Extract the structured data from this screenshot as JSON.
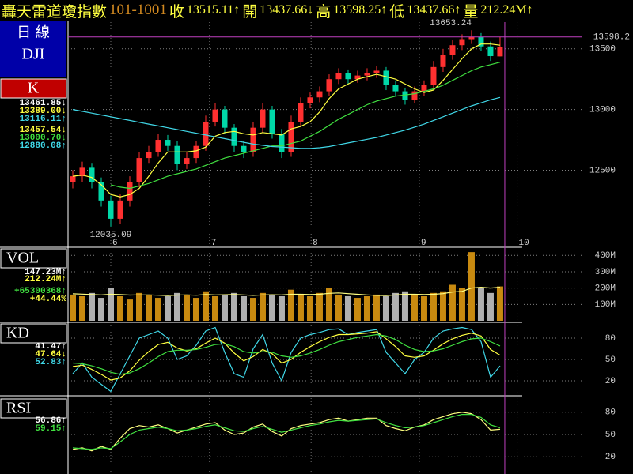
{
  "header": {
    "title": "轟天雷道瓊指數",
    "date": "101-1001",
    "items": [
      {
        "label": "收",
        "value": "13515.11↑"
      },
      {
        "label": "開",
        "value": "13437.66↓"
      },
      {
        "label": "高",
        "value": "13598.25↑"
      },
      {
        "label": "低",
        "value": "13437.66↑"
      },
      {
        "label": "量",
        "value": "212.24M↑"
      }
    ]
  },
  "sidebar": {
    "period": "日 線",
    "symbol": "DJI"
  },
  "chart_data": [
    {
      "type": "candlestick",
      "title": "K",
      "up_color": "#ff3030",
      "down_color": "#00d8a8",
      "xlim": [
        -0.5,
        46.67
      ],
      "xticks": [
        {
          "value": 4,
          "label": "6"
        },
        {
          "value": 14.4,
          "label": "7"
        },
        {
          "value": 25.1,
          "label": "8"
        },
        {
          "value": 36.5,
          "label": "9"
        },
        {
          "value": 46.8,
          "label": "10"
        }
      ],
      "ylim": [
        11865,
        13720
      ],
      "yticks": [
        12500,
        13000,
        13500
      ],
      "open": [
        12400,
        12450,
        12520,
        12400,
        12250,
        12100,
        12250,
        12400,
        12600,
        12650,
        12750,
        12700,
        12550,
        12600,
        12700,
        12900,
        13000,
        12850,
        12700,
        12650,
        12850,
        13000,
        12800,
        12650,
        12900,
        13050,
        13100,
        13150,
        13250,
        13300,
        13250,
        13280,
        13300,
        13320,
        13200,
        13150,
        13080,
        13150,
        13200,
        13350,
        13450,
        13530,
        13580,
        13600,
        13520,
        13437.66
      ],
      "high": [
        12500,
        12570,
        12560,
        12440,
        12290,
        12300,
        12450,
        12650,
        12700,
        12800,
        12790,
        12740,
        12650,
        12740,
        12950,
        13050,
        13030,
        12880,
        12740,
        12900,
        13050,
        13030,
        12840,
        12950,
        13100,
        13140,
        13190,
        13290,
        13340,
        13330,
        13320,
        13340,
        13360,
        13350,
        13240,
        13180,
        13190,
        13240,
        13400,
        13500,
        13570,
        13620,
        13653.24,
        13630,
        13560,
        13598.25
      ],
      "low": [
        12350,
        12400,
        12350,
        12200,
        12035.09,
        12060,
        12200,
        12360,
        12560,
        12610,
        12660,
        12500,
        12510,
        12560,
        12660,
        12860,
        12800,
        12650,
        12600,
        12610,
        12810,
        12760,
        12600,
        12610,
        12860,
        13010,
        13060,
        13110,
        13210,
        13210,
        13220,
        13240,
        13260,
        13160,
        13110,
        13040,
        13050,
        13110,
        13160,
        13310,
        13410,
        13490,
        13540,
        13480,
        13400,
        13437.66
      ],
      "close": [
        12450,
        12520,
        12400,
        12250,
        12100,
        12250,
        12400,
        12600,
        12650,
        12750,
        12700,
        12550,
        12600,
        12700,
        12900,
        13000,
        12850,
        12700,
        12650,
        12850,
        13000,
        12800,
        12650,
        12900,
        13050,
        13100,
        13150,
        13250,
        13300,
        13250,
        13280,
        13300,
        13320,
        13200,
        13150,
        13080,
        13150,
        13200,
        13350,
        13450,
        13530,
        13580,
        13600,
        13520,
        13440,
        13515.11
      ],
      "ma_lines": [
        {
          "color": "#ffff40",
          "values": [
            12450,
            12460,
            12440,
            12380,
            12300,
            12280,
            12300,
            12350,
            12450,
            12560,
            12650,
            12650,
            12650,
            12660,
            12690,
            12780,
            12810,
            12820,
            12800,
            12790,
            12810,
            12800,
            12790,
            12840,
            12860,
            12900,
            12980,
            13090,
            13170,
            13210,
            13250,
            13270,
            13290,
            13270,
            13250,
            13210,
            13170,
            13140,
            13160,
            13240,
            13330,
            13420,
            13500,
            13540,
            13540,
            13530
          ]
        },
        {
          "color": "#40e040",
          "values": [
            null,
            null,
            null,
            null,
            12380,
            12360,
            12350,
            12370,
            12390,
            12420,
            12450,
            12470,
            12490,
            12510,
            12540,
            12570,
            12600,
            12620,
            12640,
            12660,
            12680,
            12700,
            12700,
            12720,
            12740,
            12780,
            12820,
            12870,
            12920,
            12960,
            13000,
            13040,
            13070,
            13090,
            13110,
            13120,
            13130,
            13150,
            13170,
            13200,
            13240,
            13280,
            13320,
            13350,
            13370,
            13390
          ]
        },
        {
          "color": "#40d8e8",
          "values": [
            13000,
            12985,
            12970,
            12955,
            12940,
            12925,
            12910,
            12895,
            12880,
            12865,
            12850,
            12835,
            12820,
            12805,
            12790,
            12775,
            12760,
            12745,
            12730,
            12715,
            12705,
            12695,
            12690,
            12685,
            12680,
            12680,
            12685,
            12695,
            12710,
            12725,
            12740,
            12755,
            12770,
            12790,
            12810,
            12830,
            12855,
            12880,
            12910,
            12940,
            12970,
            13000,
            13030,
            13055,
            13080,
            13100
          ]
        }
      ],
      "high_label": "13653.24",
      "low_label": "12035.09",
      "cursor": {
        "value": 13598.25,
        "label": "13598.2"
      },
      "side_labels": [
        {
          "text": "13461.85↓",
          "color": "#ffffff"
        },
        {
          "text": "13389.00↓",
          "color": "#ffff40"
        },
        {
          "text": "13116.11↑",
          "color": "#40d8e8"
        },
        {
          "text": "13457.54↓",
          "color": "#ffff40"
        },
        {
          "text": "13000.70↓",
          "color": "#40e040"
        },
        {
          "text": "12880.08↑",
          "color": "#40d8e8"
        }
      ]
    },
    {
      "type": "bar",
      "title": "VOL",
      "up_color": "#c88a10",
      "down_color": "#b0b0b0",
      "ylim": [
        0,
        440
      ],
      "yticks": [
        {
          "value": 100,
          "label": "100M"
        },
        {
          "value": 200,
          "label": "200M"
        },
        {
          "value": 300,
          "label": "300M"
        },
        {
          "value": 400,
          "label": "400M"
        }
      ],
      "values": [
        160,
        150,
        170,
        140,
        200,
        150,
        130,
        170,
        160,
        140,
        150,
        170,
        160,
        140,
        180,
        150,
        160,
        170,
        150,
        140,
        170,
        160,
        150,
        190,
        160,
        150,
        170,
        200,
        160,
        150,
        140,
        150,
        160,
        150,
        170,
        180,
        160,
        150,
        170,
        180,
        220,
        200,
        420,
        200,
        170,
        210
      ],
      "line": {
        "color": "#ffff80",
        "values": [
          165,
          163,
          160,
          158,
          162,
          160,
          157,
          158,
          158,
          156,
          154,
          157,
          158,
          156,
          160,
          158,
          159,
          160,
          158,
          155,
          158,
          159,
          158,
          162,
          162,
          160,
          162,
          168,
          170,
          166,
          162,
          158,
          155,
          154,
          158,
          162,
          162,
          160,
          162,
          166,
          176,
          180,
          200,
          205,
          200,
          205
        ]
      },
      "side_labels": [
        {
          "text": "147.23M↑",
          "color": "#ffffff"
        },
        {
          "text": "212.24M↑",
          "color": "#ffff40"
        },
        {
          "text": "+65300368↑",
          "color": "#40e040"
        },
        {
          "text": "+44.44%",
          "color": "#ffff40"
        }
      ]
    },
    {
      "type": "line",
      "title": "KD",
      "ylim": [
        0,
        100
      ],
      "yticks": [
        20,
        50,
        80
      ],
      "series": [
        {
          "color": "#40d8e8",
          "values": [
            30,
            45,
            25,
            15,
            5,
            30,
            55,
            80,
            85,
            90,
            80,
            50,
            55,
            70,
            90,
            95,
            60,
            30,
            25,
            65,
            85,
            45,
            20,
            60,
            80,
            85,
            88,
            92,
            93,
            85,
            88,
            90,
            92,
            60,
            45,
            30,
            50,
            60,
            80,
            90,
            93,
            95,
            92,
            75,
            25,
            41
          ]
        },
        {
          "color": "#ffff40",
          "values": [
            40,
            42,
            36,
            29,
            21,
            24,
            34,
            49,
            61,
            71,
            74,
            66,
            62,
            65,
            73,
            80,
            73,
            59,
            48,
            54,
            64,
            58,
            45,
            50,
            60,
            68,
            75,
            81,
            85,
            85,
            86,
            87,
            89,
            79,
            68,
            55,
            53,
            55,
            63,
            72,
            79,
            84,
            87,
            83,
            64,
            56
          ]
        },
        {
          "color": "#40e040",
          "values": [
            45,
            44,
            41,
            37,
            32,
            29,
            31,
            37,
            45,
            54,
            61,
            63,
            63,
            64,
            67,
            71,
            72,
            68,
            61,
            59,
            61,
            60,
            55,
            53,
            55,
            59,
            64,
            70,
            75,
            78,
            81,
            83,
            85,
            83,
            78,
            70,
            64,
            61,
            62,
            65,
            70,
            75,
            79,
            80,
            75,
            69
          ]
        }
      ],
      "side_labels": [
        {
          "text": "41.47↑",
          "color": "#ffffff"
        },
        {
          "text": "47.64↓",
          "color": "#ffff40"
        },
        {
          "text": "52.83↑",
          "color": "#40d8e8"
        }
      ]
    },
    {
      "type": "line",
      "title": "RSI",
      "ylim": [
        0,
        100
      ],
      "yticks": [
        20,
        50,
        80
      ],
      "series": [
        {
          "color": "#ffff80",
          "values": [
            30,
            32,
            28,
            34,
            30,
            45,
            58,
            62,
            60,
            63,
            58,
            52,
            56,
            60,
            64,
            66,
            56,
            50,
            52,
            60,
            64,
            54,
            48,
            58,
            62,
            64,
            66,
            70,
            72,
            68,
            70,
            72,
            72,
            62,
            58,
            55,
            60,
            63,
            70,
            74,
            78,
            80,
            78,
            70,
            56,
            57
          ]
        },
        {
          "color": "#40e040",
          "values": [
            32,
            31,
            30,
            32,
            31,
            40,
            50,
            56,
            58,
            60,
            58,
            55,
            56,
            58,
            61,
            63,
            59,
            55,
            54,
            58,
            61,
            57,
            53,
            56,
            59,
            62,
            64,
            67,
            69,
            68,
            69,
            70,
            71,
            66,
            62,
            59,
            60,
            62,
            66,
            70,
            74,
            77,
            77,
            73,
            63,
            59
          ]
        }
      ],
      "side_labels": [
        {
          "text": "56.86↑",
          "color": "#ffffff"
        },
        {
          "text": "59.15↑",
          "color": "#40e040"
        }
      ]
    }
  ]
}
